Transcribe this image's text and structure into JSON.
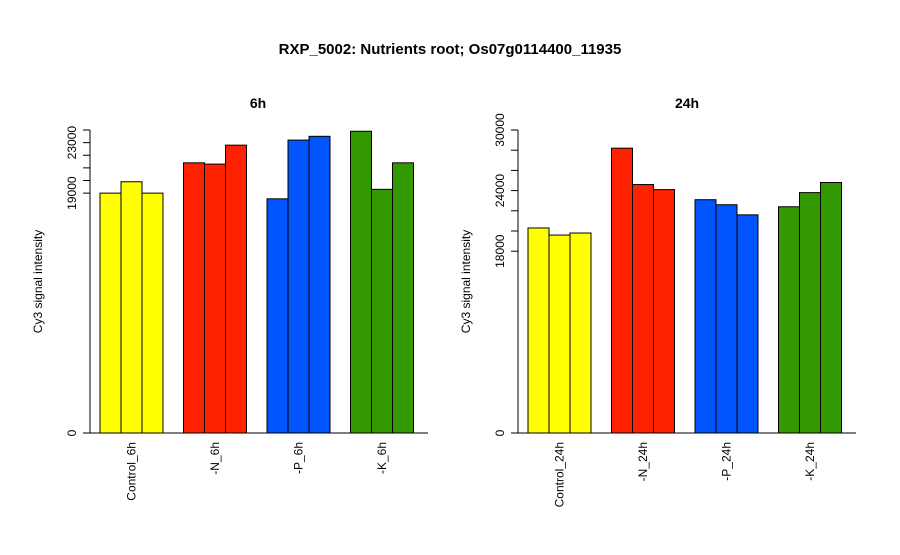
{
  "title": "RXP_5002: Nutrients root; Os07g0114400_11935",
  "chart_data": [
    {
      "type": "bar",
      "title": "6h",
      "ylabel": "Cy3 signal intensity",
      "ylim": [
        0,
        24000
      ],
      "yticks": [
        0,
        19000,
        23000
      ],
      "yticks_unlabeled": [
        20000,
        21000,
        22000,
        24000
      ],
      "groups": [
        {
          "label": "Control_6h",
          "color": "#ffff00",
          "values": [
            19000,
            19900,
            19000
          ]
        },
        {
          "label": "-N_6h",
          "color": "#ff2200",
          "values": [
            21400,
            21300,
            22800
          ]
        },
        {
          "label": "-P_6h",
          "color": "#0055ff",
          "values": [
            18550,
            23200,
            23500
          ]
        },
        {
          "label": "-K_6h",
          "color": "#339900",
          "values": [
            23900,
            19300,
            21400
          ]
        }
      ]
    },
    {
      "type": "bar",
      "title": "24h",
      "ylabel": "Cy3 signal intensity",
      "ylim": [
        0,
        30000
      ],
      "yticks": [
        0,
        18000,
        24000,
        30000
      ],
      "yticks_unlabeled": [
        20000,
        22000,
        26000,
        28000
      ],
      "groups": [
        {
          "label": "Control_24h",
          "color": "#ffff00",
          "values": [
            20300,
            19600,
            19800
          ]
        },
        {
          "label": "-N_24h",
          "color": "#ff2200",
          "values": [
            28200,
            24600,
            24100
          ]
        },
        {
          "label": "-P_24h",
          "color": "#0055ff",
          "values": [
            23100,
            22600,
            21600
          ]
        },
        {
          "label": "-K_24h",
          "color": "#339900",
          "values": [
            22400,
            23800,
            24800
          ]
        }
      ]
    }
  ]
}
